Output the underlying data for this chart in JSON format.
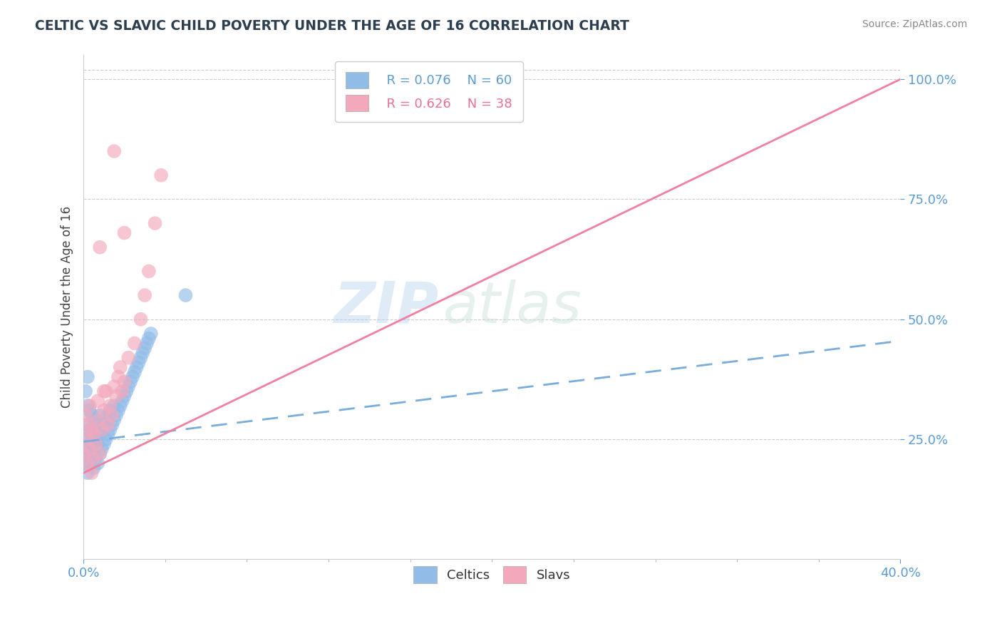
{
  "title": "CELTIC VS SLAVIC CHILD POVERTY UNDER THE AGE OF 16 CORRELATION CHART",
  "source": "Source: ZipAtlas.com",
  "ylabel": "Child Poverty Under the Age of 16",
  "ytick_labels": [
    "25.0%",
    "50.0%",
    "75.0%",
    "100.0%"
  ],
  "ytick_values": [
    0.25,
    0.5,
    0.75,
    1.0
  ],
  "xlim": [
    0.0,
    0.4
  ],
  "ylim": [
    0.0,
    1.05
  ],
  "legend_R_celtic": "R = 0.076",
  "legend_N_celtic": "N = 60",
  "legend_R_slavic": "R = 0.626",
  "legend_N_slavic": "N = 38",
  "celtic_color": "#92bce8",
  "slavic_color": "#f4a8bc",
  "celtic_line_color": "#7aacdc",
  "slavic_line_color": "#f080a0",
  "watermark_zip": "ZIP",
  "watermark_atlas": "atlas",
  "celtics_scatter_x": [
    0.0,
    0.001,
    0.001,
    0.001,
    0.002,
    0.002,
    0.002,
    0.002,
    0.002,
    0.003,
    0.003,
    0.003,
    0.003,
    0.004,
    0.004,
    0.004,
    0.005,
    0.005,
    0.005,
    0.006,
    0.006,
    0.006,
    0.007,
    0.007,
    0.007,
    0.008,
    0.008,
    0.008,
    0.009,
    0.009,
    0.01,
    0.01,
    0.011,
    0.011,
    0.012,
    0.012,
    0.013,
    0.013,
    0.014,
    0.015,
    0.015,
    0.016,
    0.017,
    0.018,
    0.019,
    0.02,
    0.021,
    0.022,
    0.023,
    0.024,
    0.025,
    0.026,
    0.027,
    0.028,
    0.029,
    0.03,
    0.031,
    0.032,
    0.033,
    0.05
  ],
  "celtics_scatter_y": [
    0.2,
    0.22,
    0.25,
    0.35,
    0.18,
    0.23,
    0.28,
    0.32,
    0.38,
    0.2,
    0.24,
    0.27,
    0.31,
    0.22,
    0.26,
    0.3,
    0.19,
    0.23,
    0.27,
    0.21,
    0.25,
    0.29,
    0.2,
    0.24,
    0.28,
    0.22,
    0.26,
    0.3,
    0.23,
    0.27,
    0.24,
    0.28,
    0.25,
    0.29,
    0.26,
    0.3,
    0.27,
    0.31,
    0.28,
    0.29,
    0.32,
    0.3,
    0.31,
    0.32,
    0.33,
    0.34,
    0.35,
    0.36,
    0.37,
    0.38,
    0.39,
    0.4,
    0.41,
    0.42,
    0.43,
    0.44,
    0.45,
    0.46,
    0.47,
    0.55
  ],
  "slavics_scatter_x": [
    0.0,
    0.001,
    0.001,
    0.002,
    0.002,
    0.003,
    0.003,
    0.004,
    0.004,
    0.005,
    0.005,
    0.006,
    0.007,
    0.007,
    0.008,
    0.009,
    0.01,
    0.011,
    0.012,
    0.013,
    0.014,
    0.015,
    0.016,
    0.017,
    0.018,
    0.019,
    0.02,
    0.022,
    0.025,
    0.028,
    0.03,
    0.032,
    0.035,
    0.038,
    0.008,
    0.01,
    0.015,
    0.02
  ],
  "slavics_scatter_y": [
    0.22,
    0.25,
    0.3,
    0.2,
    0.28,
    0.23,
    0.32,
    0.18,
    0.27,
    0.21,
    0.26,
    0.24,
    0.29,
    0.33,
    0.22,
    0.27,
    0.31,
    0.35,
    0.28,
    0.32,
    0.3,
    0.36,
    0.34,
    0.38,
    0.4,
    0.35,
    0.37,
    0.42,
    0.45,
    0.5,
    0.55,
    0.6,
    0.7,
    0.8,
    0.65,
    0.35,
    0.85,
    0.68
  ],
  "celtic_line_x0": 0.0,
  "celtic_line_x1": 0.4,
  "celtic_line_y0": 0.245,
  "celtic_line_y1": 0.455,
  "slavic_line_x0": 0.0,
  "slavic_line_x1": 0.4,
  "slavic_line_y0": 0.18,
  "slavic_line_y1": 1.0
}
